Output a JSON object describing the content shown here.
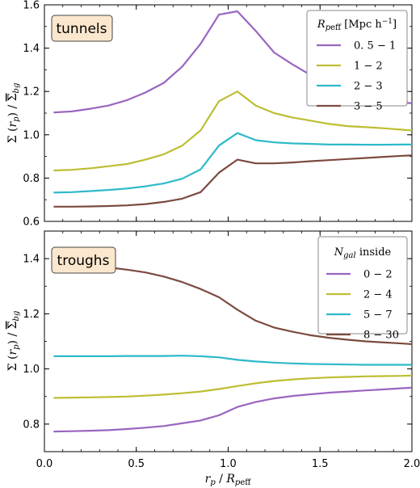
{
  "colors": {
    "purple": "#9A65C0",
    "olive": "#BDBE33",
    "cyan": "#2EB9C9",
    "brown": "#7C4A3E",
    "tag_bg": "#FBE7CD"
  },
  "shared_xaxis": {
    "label": "r_p / R_p eff",
    "xlim": [
      0.0,
      2.0
    ],
    "ticks": [
      "0.0",
      "0.5",
      "1.0",
      "1.5",
      "2.0"
    ]
  },
  "chart_data": [
    {
      "type": "line",
      "panel": "tunnels",
      "tag": "tunnels",
      "ylabel": "Σ (r_p) / Σ̄_bg",
      "xlim": [
        0.0,
        2.0
      ],
      "ylim": [
        0.6,
        1.6
      ],
      "yticks": [
        "0.6",
        "0.8",
        "1.0",
        "1.2",
        "1.4",
        "1.6"
      ],
      "legend": {
        "title": "R_p eff [Mpc h^-1]",
        "placement": "top-right"
      },
      "x": [
        0.05,
        0.15,
        0.25,
        0.35,
        0.45,
        0.55,
        0.65,
        0.75,
        0.85,
        0.95,
        1.05,
        1.15,
        1.25,
        1.35,
        1.45,
        1.55,
        1.65,
        1.75,
        1.85,
        1.95,
        2.0
      ],
      "series": [
        {
          "name": "0. 5 − 1",
          "color": "purple",
          "values": [
            1.103,
            1.108,
            1.12,
            1.135,
            1.16,
            1.195,
            1.24,
            1.315,
            1.42,
            1.555,
            1.57,
            1.48,
            1.38,
            1.325,
            1.275,
            1.235,
            1.2,
            1.18,
            1.165,
            1.15,
            1.145
          ]
        },
        {
          "name": "1 − 2",
          "color": "olive",
          "values": [
            0.835,
            0.838,
            0.845,
            0.855,
            0.865,
            0.885,
            0.91,
            0.95,
            1.02,
            1.155,
            1.2,
            1.135,
            1.1,
            1.08,
            1.065,
            1.05,
            1.04,
            1.035,
            1.03,
            1.023,
            1.02
          ]
        },
        {
          "name": "2 − 3",
          "color": "cyan",
          "values": [
            0.733,
            0.735,
            0.74,
            0.745,
            0.752,
            0.762,
            0.775,
            0.797,
            0.84,
            0.95,
            1.008,
            0.975,
            0.965,
            0.96,
            0.958,
            0.955,
            0.955,
            0.954,
            0.954,
            0.955,
            0.955
          ]
        },
        {
          "name": "3 − 5",
          "color": "brown",
          "values": [
            0.668,
            0.668,
            0.669,
            0.671,
            0.674,
            0.68,
            0.69,
            0.705,
            0.735,
            0.825,
            0.885,
            0.868,
            0.868,
            0.872,
            0.878,
            0.883,
            0.888,
            0.893,
            0.898,
            0.903,
            0.905
          ]
        }
      ]
    },
    {
      "type": "line",
      "panel": "troughs",
      "tag": "troughs",
      "ylabel": "Σ (r_p) / Σ̄_bg",
      "xlim": [
        0.0,
        2.0
      ],
      "ylim": [
        0.7,
        1.5
      ],
      "yticks": [
        "0.8",
        "1.0",
        "1.2",
        "1.4"
      ],
      "legend": {
        "title": "N_gal inside",
        "placement": "top-right"
      },
      "x": [
        0.05,
        0.15,
        0.25,
        0.35,
        0.45,
        0.55,
        0.65,
        0.75,
        0.85,
        0.95,
        1.05,
        1.15,
        1.25,
        1.35,
        1.45,
        1.55,
        1.65,
        1.75,
        1.85,
        1.95,
        2.0
      ],
      "series": [
        {
          "name": "0 − 2",
          "color": "purple",
          "values": [
            0.773,
            0.774,
            0.776,
            0.778,
            0.782,
            0.787,
            0.793,
            0.803,
            0.813,
            0.832,
            0.862,
            0.88,
            0.893,
            0.902,
            0.908,
            0.914,
            0.918,
            0.922,
            0.926,
            0.93,
            0.932
          ]
        },
        {
          "name": "2 − 4",
          "color": "olive",
          "values": [
            0.895,
            0.896,
            0.897,
            0.898,
            0.9,
            0.903,
            0.907,
            0.912,
            0.918,
            0.927,
            0.938,
            0.948,
            0.956,
            0.962,
            0.966,
            0.969,
            0.971,
            0.973,
            0.974,
            0.975,
            0.976
          ]
        },
        {
          "name": "5 − 7",
          "color": "cyan",
          "values": [
            1.046,
            1.046,
            1.046,
            1.046,
            1.047,
            1.047,
            1.047,
            1.048,
            1.046,
            1.042,
            1.033,
            1.027,
            1.023,
            1.02,
            1.018,
            1.017,
            1.016,
            1.015,
            1.015,
            1.015,
            1.015
          ]
        },
        {
          "name": "8 − 30",
          "color": "brown",
          "values": [
            1.38,
            1.378,
            1.375,
            1.368,
            1.36,
            1.35,
            1.335,
            1.315,
            1.29,
            1.26,
            1.215,
            1.175,
            1.15,
            1.135,
            1.122,
            1.113,
            1.106,
            1.1,
            1.096,
            1.092,
            1.09
          ]
        }
      ]
    }
  ]
}
